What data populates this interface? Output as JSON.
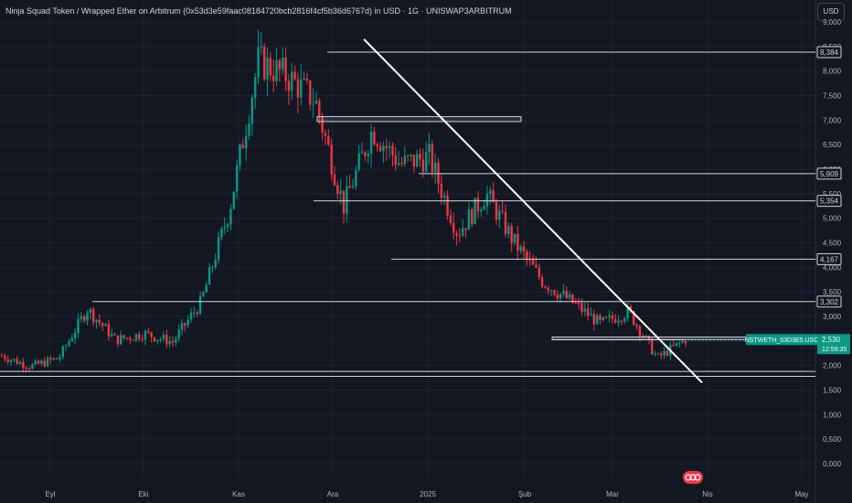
{
  "header": {
    "title": "Ninja Squad Token / Wrapped Ether on Arbitrum (0x53d3e59faac08184720bcb2816f4cf5b36d6767d) in USD · 1G · UNISWAP3ARBITRUM",
    "currency_button": "USD"
  },
  "chart_data": {
    "type": "candlestick",
    "y_axis": {
      "min": 0,
      "max": 9000,
      "ticks": [
        "0,000",
        "0,500",
        "1,000",
        "1,500",
        "2,000",
        "2,500",
        "3,000",
        "3,500",
        "4,000",
        "4,500",
        "5,000",
        "5,500",
        "6,000",
        "6,500",
        "7,000",
        "7,500",
        "8,000",
        "8,500",
        "9,000"
      ]
    },
    "x_axis": {
      "labels": [
        "Eyl",
        "Eki",
        "Kas",
        "Ara",
        "2025",
        "Şub",
        "Mar",
        "Nis",
        "May"
      ]
    },
    "price_badges": [
      "8,384",
      "5,909",
      "5,354",
      "4,167",
      "3,302"
    ],
    "current_price": {
      "symbol": "NSTWETH_53D3E5.USD",
      "value": "2,530",
      "countdown": "12:59:35",
      "color": "#089981"
    },
    "horizontal_levels": [
      8384,
      5909,
      5354,
      4167,
      3302,
      2530,
      1880,
      1780
    ],
    "zones": [
      {
        "price_top": 7070,
        "price_bottom": 6970
      },
      {
        "price_top": 2580,
        "price_bottom": 2530
      }
    ],
    "trendline": {
      "from_price": 8650,
      "to_price": 1650
    },
    "key_closes": [
      2200,
      1980,
      2150,
      3150,
      2520,
      2650,
      2480,
      3300,
      5200,
      8200,
      7900,
      7400,
      5250,
      6800,
      6100,
      6250,
      4700,
      5500,
      4500,
      3700,
      3300,
      2850,
      3100,
      2150,
      2530
    ],
    "colors": {
      "up": "#089981",
      "down": "#f23645",
      "background": "#131722"
    }
  }
}
